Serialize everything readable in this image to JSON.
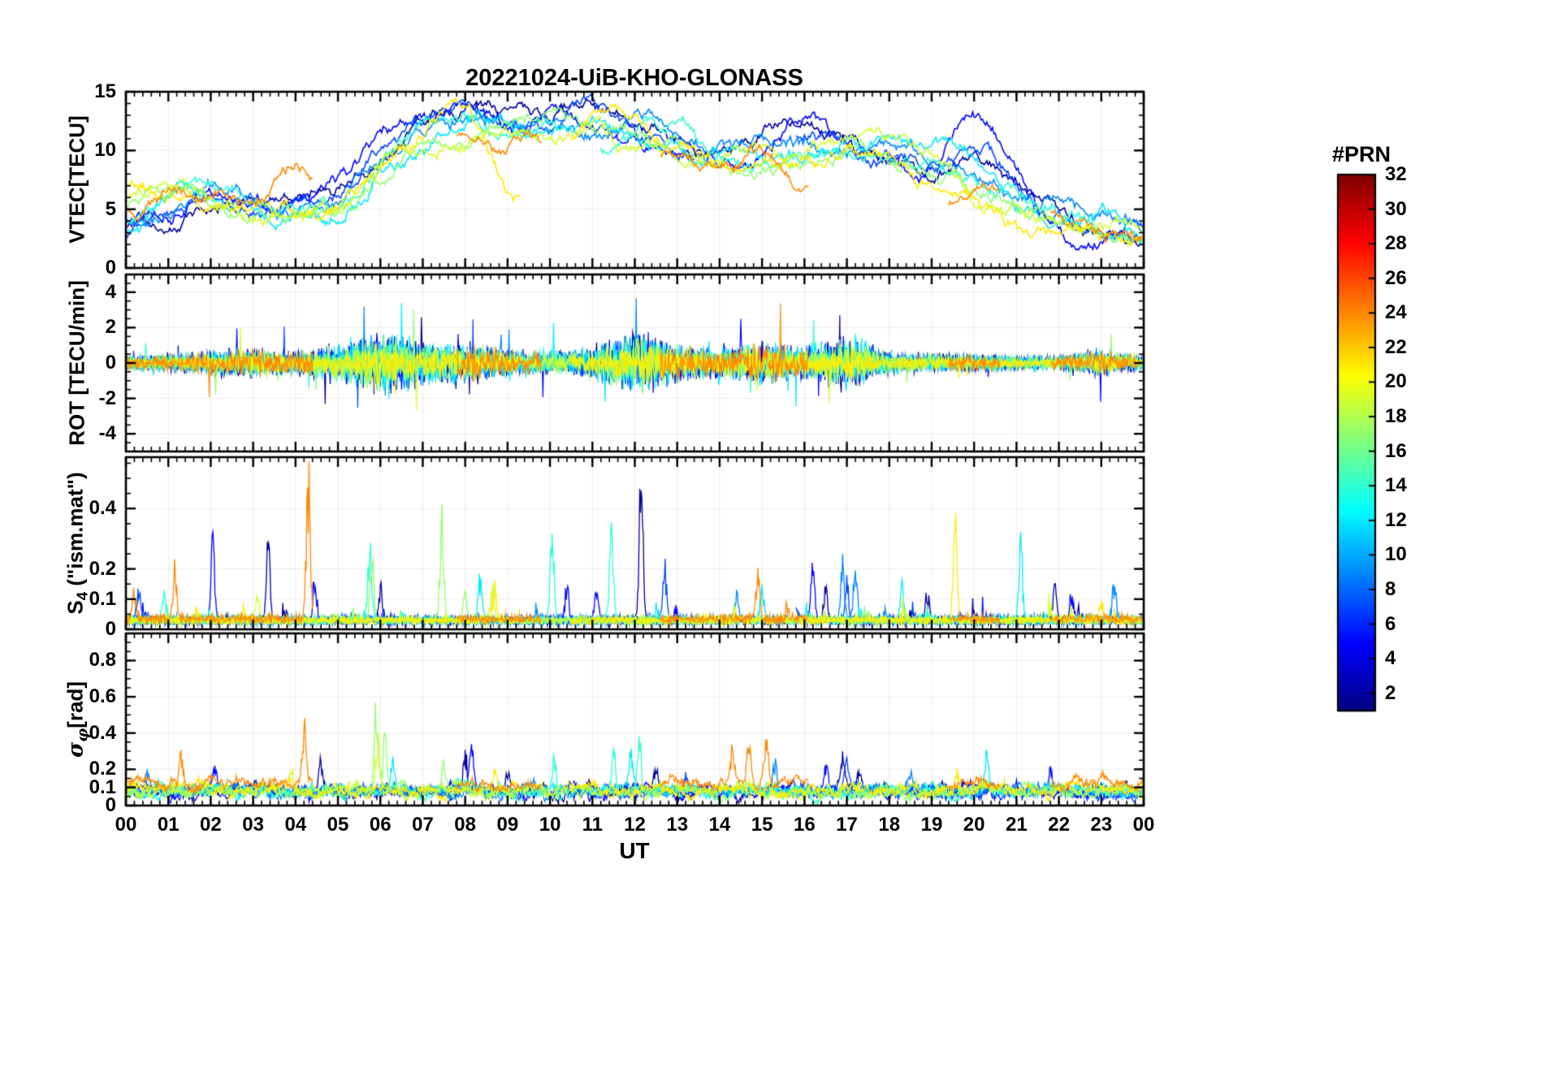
{
  "chart_data": {
    "type": "line",
    "title": "20221024-UiB-KHO-GLONASS",
    "xlabel": "UT",
    "xlim": [
      0,
      24
    ],
    "x_tick_labels": [
      "00",
      "01",
      "02",
      "03",
      "04",
      "05",
      "06",
      "07",
      "08",
      "09",
      "10",
      "11",
      "12",
      "13",
      "14",
      "15",
      "16",
      "17",
      "18",
      "19",
      "20",
      "21",
      "22",
      "23",
      "00"
    ],
    "x_minor_step": 0.2,
    "grid": true,
    "colorbar": {
      "label": "#PRN",
      "colormap": "jet",
      "range": [
        1,
        32
      ],
      "ticks": [
        2,
        4,
        6,
        8,
        10,
        12,
        14,
        16,
        18,
        20,
        22,
        24,
        26,
        28,
        30,
        32
      ]
    },
    "panels": [
      {
        "id": "vtec",
        "ylabel_parts": [
          {
            "t": "VTEC[TECU]"
          }
        ],
        "ylim": [
          0,
          15
        ],
        "yticks": [
          0,
          5,
          10,
          15
        ],
        "y_minor_step": 1
      },
      {
        "id": "rot",
        "ylabel_parts": [
          {
            "t": "ROT [TECU/min]"
          }
        ],
        "ylim": [
          -5,
          5
        ],
        "yticks": [
          -4,
          -2,
          0,
          2,
          4
        ],
        "y_minor_step": 0.5
      },
      {
        "id": "s4",
        "ylabel_parts": [
          {
            "t": "S"
          },
          {
            "t": "4",
            "sub": true
          },
          {
            "t": " (\"ism.mat\")"
          }
        ],
        "ylim": [
          0,
          0.57
        ],
        "yticks": [
          0,
          0.1,
          0.2,
          0.4
        ],
        "y_minor_step": 0.05
      },
      {
        "id": "sigma_phi",
        "ylabel_parts": [
          {
            "t": "σ",
            "italic": true
          },
          {
            "t": "φ",
            "sub": true,
            "italic": true
          },
          {
            "t": "[rad]"
          }
        ],
        "ylim": [
          0,
          0.95
        ],
        "yticks": [
          0,
          0.1,
          0.2,
          0.4,
          0.6,
          0.8
        ],
        "y_minor_step": 0.05
      }
    ],
    "rot_envelope_hourly": [
      0.5,
      0.6,
      0.9,
      1.0,
      0.8,
      1.4,
      2.2,
      1.6,
      1.4,
      1.0,
      0.8,
      1.2,
      2.2,
      1.4,
      1.2,
      1.5,
      1.2,
      1.8,
      0.8,
      0.7,
      0.6,
      0.5,
      0.5,
      0.9,
      0.5
    ],
    "render_seed": 20221024,
    "series": [
      {
        "prn": 2,
        "segments": [
          [
            0,
            24
          ]
        ],
        "rot_scale": 1.0,
        "s4_base": 0.025,
        "sigma_base": 0.07,
        "vtec_hourly": [
          3.5,
          4.2,
          5.0,
          6.2,
          6.0,
          7.0,
          9.5,
          12.5,
          14.2,
          13.0,
          12.2,
          13.5,
          12.5,
          11.0,
          10.2,
          11.5,
          12.8,
          10.5,
          9.2,
          8.2,
          9.5,
          7.0,
          4.2,
          3.2,
          3.0
        ],
        "s4_spikes": [
          [
            3.35,
            0.29
          ],
          [
            12.15,
            0.56
          ],
          [
            6.0,
            0.12
          ],
          [
            16.5,
            0.12
          ],
          [
            18.9,
            0.1
          ],
          [
            21.9,
            0.12
          ]
        ],
        "sigma_spikes": [
          [
            8.0,
            0.25
          ],
          [
            12.5,
            0.18
          ],
          [
            16.9,
            0.27
          ],
          [
            17.3,
            0.2
          ],
          [
            4.6,
            0.18
          ],
          [
            9.0,
            0.15
          ]
        ]
      },
      {
        "prn": 5,
        "segments": [
          [
            0,
            24
          ]
        ],
        "rot_scale": 0.9,
        "s4_base": 0.025,
        "sigma_base": 0.07,
        "vtec_hourly": [
          4.0,
          5.0,
          6.2,
          5.5,
          6.0,
          7.2,
          11.0,
          13.2,
          14.0,
          12.2,
          13.0,
          12.0,
          11.2,
          10.0,
          9.2,
          10.5,
          13.0,
          11.0,
          9.0,
          8.0,
          12.8,
          9.0,
          3.2,
          2.6,
          3.0
        ],
        "s4_spikes": [
          [
            2.05,
            0.29
          ],
          [
            4.45,
            0.16
          ],
          [
            10.4,
            0.14
          ],
          [
            11.1,
            0.13
          ],
          [
            16.2,
            0.22
          ],
          [
            22.3,
            0.1
          ]
        ],
        "sigma_spikes": [
          [
            8.15,
            0.27
          ],
          [
            2.1,
            0.15
          ],
          [
            16.5,
            0.18
          ],
          [
            21.8,
            0.15
          ]
        ]
      },
      {
        "prn": 7,
        "segments": [
          [
            0,
            13.4
          ],
          [
            15.8,
            24
          ]
        ],
        "rot_scale": 0.8,
        "s4_base": 0.025,
        "sigma_base": 0.07,
        "vtec_hourly": [
          3.0,
          4.6,
          6.0,
          5.0,
          5.5,
          6.2,
          10.2,
          12.2,
          13.2,
          13.0,
          12.0,
          14.0,
          11.2,
          10.0,
          9.5,
          10.2,
          11.2,
          10.0,
          9.0,
          8.2,
          10.0,
          7.0,
          4.0,
          3.0,
          2.8
        ],
        "s4_spikes": [
          [
            0.3,
            0.12
          ],
          [
            12.7,
            0.2
          ],
          [
            17.0,
            0.15
          ]
        ],
        "sigma_spikes": [
          [
            13.2,
            0.15
          ],
          [
            17.0,
            0.18
          ]
        ]
      },
      {
        "prn": 9,
        "segments": [
          [
            0,
            24
          ]
        ],
        "rot_scale": 0.9,
        "s4_base": 0.025,
        "sigma_base": 0.07,
        "vtec_hourly": [
          4.2,
          5.2,
          7.0,
          6.0,
          5.2,
          6.0,
          9.2,
          11.2,
          12.2,
          13.0,
          12.0,
          11.2,
          12.2,
          11.0,
          10.2,
          11.2,
          10.2,
          9.5,
          10.0,
          9.0,
          8.0,
          6.0,
          5.0,
          4.0,
          3.5
        ],
        "s4_spikes": [
          [
            16.9,
            0.23
          ],
          [
            17.2,
            0.2
          ],
          [
            23.3,
            0.15
          ],
          [
            14.4,
            0.1
          ]
        ],
        "sigma_spikes": [
          [
            0.5,
            0.12
          ],
          [
            15.3,
            0.2
          ],
          [
            18.5,
            0.12
          ]
        ]
      },
      {
        "prn": 12,
        "segments": [
          [
            0,
            24
          ]
        ],
        "rot_scale": 1.0,
        "s4_base": 0.025,
        "sigma_base": 0.07,
        "vtec_hourly": [
          3.2,
          6.0,
          6.5,
          5.0,
          4.6,
          4.6,
          8.2,
          10.2,
          13.2,
          12.0,
          11.2,
          12.2,
          11.0,
          10.0,
          10.2,
          9.2,
          10.0,
          11.0,
          10.5,
          10.0,
          9.0,
          5.2,
          4.2,
          4.5,
          2.2
        ],
        "s4_spikes": [
          [
            8.35,
            0.14
          ],
          [
            15.0,
            0.12
          ],
          [
            21.1,
            0.3
          ],
          [
            18.3,
            0.12
          ]
        ],
        "sigma_spikes": [
          [
            20.3,
            0.22
          ],
          [
            11.9,
            0.2
          ],
          [
            6.3,
            0.15
          ]
        ]
      },
      {
        "prn": 14,
        "segments": [
          [
            0,
            10.3
          ],
          [
            11.2,
            24
          ]
        ],
        "rot_scale": 0.8,
        "s4_base": 0.025,
        "sigma_base": 0.07,
        "vtec_hourly": [
          4.0,
          6.0,
          7.0,
          5.2,
          5.0,
          5.2,
          9.2,
          12.2,
          13.0,
          11.2,
          12.0,
          10.2,
          11.0,
          12.0,
          10.0,
          9.2,
          9.0,
          10.0,
          9.2,
          8.2,
          7.0,
          6.0,
          5.0,
          3.2,
          2.0
        ],
        "s4_spikes": [
          [
            5.75,
            0.28
          ],
          [
            10.05,
            0.38
          ],
          [
            11.45,
            0.34
          ],
          [
            0.9,
            0.1
          ]
        ],
        "sigma_spikes": [
          [
            10.1,
            0.2
          ],
          [
            11.5,
            0.25
          ],
          [
            12.1,
            0.28
          ]
        ]
      },
      {
        "prn": 17,
        "segments": [
          [
            0,
            24
          ]
        ],
        "rot_scale": 0.9,
        "s4_base": 0.025,
        "sigma_base": 0.07,
        "vtec_hourly": [
          5.0,
          7.2,
          6.2,
          4.6,
          5.0,
          5.2,
          8.2,
          10.2,
          11.2,
          12.0,
          13.0,
          12.2,
          11.0,
          10.0,
          9.2,
          8.2,
          9.0,
          10.0,
          9.0,
          8.0,
          6.2,
          5.0,
          4.0,
          3.0,
          2.5
        ],
        "s4_spikes": [
          [
            7.45,
            0.37
          ],
          [
            8.0,
            0.1
          ],
          [
            5.8,
            0.25
          ]
        ],
        "sigma_spikes": [
          [
            5.9,
            0.52
          ],
          [
            6.1,
            0.3
          ],
          [
            7.5,
            0.2
          ]
        ]
      },
      {
        "prn": 19,
        "segments": [
          [
            0,
            24
          ]
        ],
        "rot_scale": 0.7,
        "s4_base": 0.025,
        "sigma_base": 0.07,
        "vtec_hourly": [
          6.2,
          6.6,
          6.0,
          5.0,
          4.8,
          5.2,
          9.2,
          10.2,
          11.0,
          12.2,
          11.2,
          12.0,
          10.2,
          9.2,
          10.0,
          10.2,
          9.2,
          10.0,
          11.0,
          10.0,
          6.2,
          5.0,
          4.0,
          3.2,
          3.0
        ],
        "s4_spikes": [
          [
            8.65,
            0.13
          ],
          [
            3.1,
            0.1
          ]
        ],
        "sigma_spikes": [
          [
            5.95,
            0.3
          ],
          [
            3.9,
            0.15
          ]
        ]
      },
      {
        "prn": 21,
        "segments": [
          [
            0,
            9.3
          ],
          [
            10.5,
            24
          ]
        ],
        "rot_scale": 0.6,
        "s4_base": 0.025,
        "sigma_base": 0.08,
        "vtec_hourly": [
          7.0,
          6.2,
          5.6,
          5.0,
          4.6,
          5.2,
          8.2,
          11.2,
          13.5,
          6.2,
          8.0,
          13.2,
          12.2,
          10.2,
          9.2,
          8.2,
          9.0,
          10.0,
          9.0,
          7.0,
          5.2,
          3.2,
          2.6,
          2.2,
          2.0
        ],
        "s4_spikes": [
          [
            19.55,
            0.37
          ],
          [
            8.7,
            0.12
          ],
          [
            23.0,
            0.08
          ]
        ],
        "sigma_spikes": [
          [
            19.6,
            0.15
          ],
          [
            8.7,
            0.12
          ]
        ]
      },
      {
        "prn": 24,
        "segments": [
          [
            0,
            4.4
          ],
          [
            7.8,
            9.8
          ],
          [
            12.6,
            16.1
          ],
          [
            19.4,
            20.6
          ],
          [
            21.8,
            24
          ]
        ],
        "rot_scale": 0.9,
        "s4_base": 0.03,
        "sigma_base": 0.11,
        "vtec_hourly": [
          5.2,
          6.6,
          6.2,
          5.6,
          8.2,
          7.0,
          9.0,
          10.0,
          11.0,
          10.5,
          11.0,
          10.2,
          10.0,
          9.2,
          8.2,
          10.0,
          7.2,
          6.0,
          5.2,
          4.2,
          6.5,
          6.0,
          4.2,
          3.5,
          3.0
        ],
        "s4_spikes": [
          [
            4.3,
            0.55
          ],
          [
            1.15,
            0.18
          ],
          [
            14.9,
            0.17
          ],
          [
            0.2,
            0.1
          ]
        ],
        "sigma_spikes": [
          [
            4.2,
            0.35
          ],
          [
            1.3,
            0.22
          ],
          [
            14.7,
            0.3
          ],
          [
            15.1,
            0.28
          ],
          [
            14.3,
            0.2
          ]
        ]
      }
    ]
  }
}
